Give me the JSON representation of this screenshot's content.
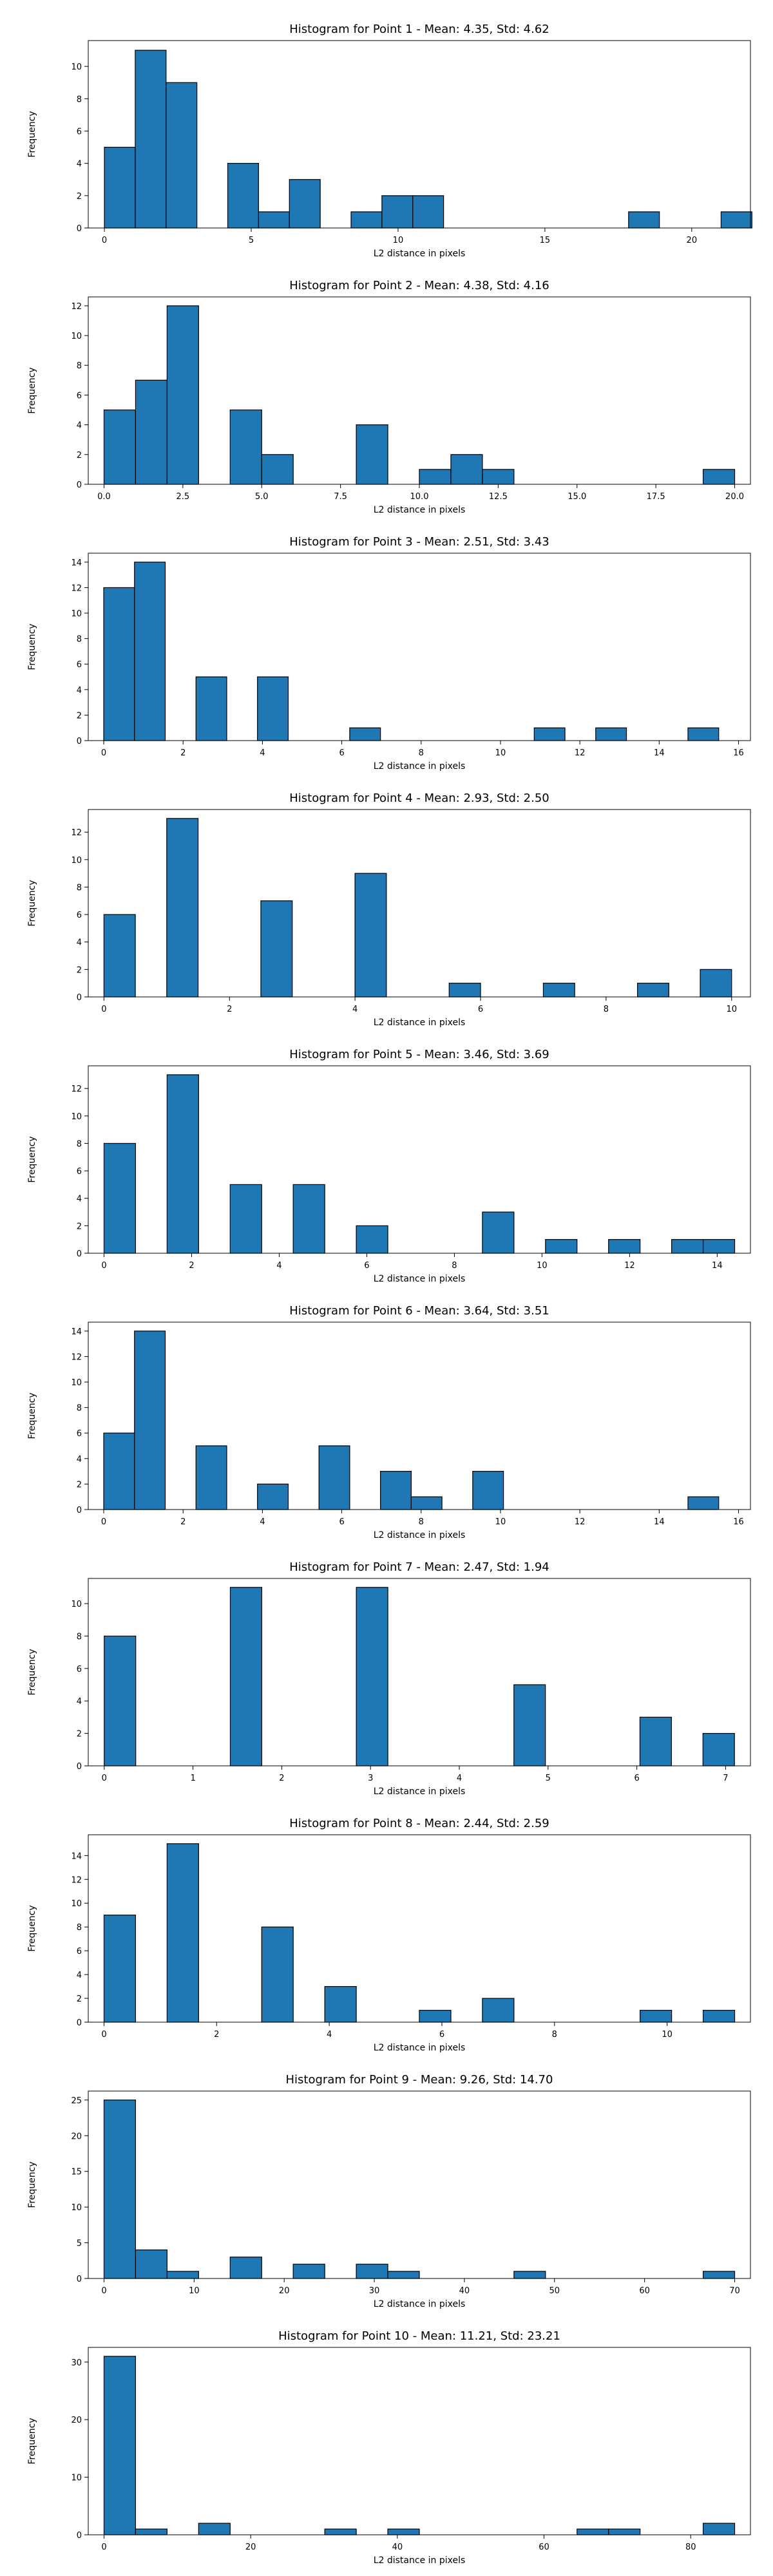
{
  "chart_data": [
    {
      "type": "bar",
      "title": "Histogram for Point 1 - Mean: 4.35, Std: 4.62",
      "xlabel": "L2 distance in pixels",
      "ylabel": "Frequency",
      "bin_start": 0.0,
      "bin_width": 1.05,
      "counts": [
        5,
        11,
        9,
        0,
        4,
        1,
        3,
        0,
        1,
        2,
        2,
        0,
        0,
        0,
        0,
        0,
        0,
        1,
        0,
        0,
        1
      ],
      "xlim": [
        -0.55,
        22.0
      ],
      "ylim": [
        0,
        11.6
      ],
      "xticks": [
        0,
        5,
        10,
        15,
        20
      ],
      "xtick_labels": [
        "0",
        "5",
        "10",
        "15",
        "20"
      ],
      "yticks": [
        0,
        2,
        4,
        6,
        8,
        10
      ],
      "ytick_labels": [
        "0",
        "2",
        "4",
        "6",
        "8",
        "10"
      ]
    },
    {
      "type": "bar",
      "title": "Histogram for Point 2 - Mean: 4.38, Std: 4.16",
      "xlabel": "L2 distance in pixels",
      "ylabel": "Frequency",
      "bin_start": 0.0,
      "bin_width": 1.0,
      "counts": [
        5,
        7,
        12,
        0,
        5,
        2,
        0,
        0,
        4,
        0,
        1,
        2,
        1,
        0,
        0,
        0,
        0,
        0,
        0,
        1
      ],
      "xlim": [
        -0.5,
        20.5
      ],
      "ylim": [
        0,
        12.6
      ],
      "xticks": [
        0,
        2.5,
        5,
        7.5,
        10,
        12.5,
        15,
        17.5,
        20
      ],
      "xtick_labels": [
        "0.0",
        "2.5",
        "5.0",
        "7.5",
        "10.0",
        "12.5",
        "15.0",
        "17.5",
        "20.0"
      ],
      "yticks": [
        0,
        2,
        4,
        6,
        8,
        10,
        12
      ],
      "ytick_labels": [
        "0",
        "2",
        "4",
        "6",
        "8",
        "10",
        "12"
      ]
    },
    {
      "type": "bar",
      "title": "Histogram for Point 3 - Mean: 2.51, Std: 3.43",
      "xlabel": "L2 distance in pixels",
      "ylabel": "Frequency",
      "bin_start": 0.0,
      "bin_width": 0.775,
      "counts": [
        12,
        14,
        0,
        5,
        0,
        5,
        0,
        0,
        1,
        0,
        0,
        0,
        0,
        0,
        1,
        0,
        1,
        0,
        0,
        1
      ],
      "xlim": [
        -0.39,
        16.3
      ],
      "ylim": [
        0,
        14.7
      ],
      "xticks": [
        0,
        2,
        4,
        6,
        8,
        10,
        12,
        14,
        16
      ],
      "xtick_labels": [
        "0",
        "2",
        "4",
        "6",
        "8",
        "10",
        "12",
        "14",
        "16"
      ],
      "yticks": [
        0,
        2,
        4,
        6,
        8,
        10,
        12,
        14
      ],
      "ytick_labels": [
        "0",
        "2",
        "4",
        "6",
        "8",
        "10",
        "12",
        "14"
      ]
    },
    {
      "type": "bar",
      "title": "Histogram for Point 4 - Mean: 2.93, Std: 2.50",
      "xlabel": "L2 distance in pixels",
      "ylabel": "Frequency",
      "bin_start": 0.0,
      "bin_width": 0.5,
      "counts": [
        6,
        0,
        13,
        0,
        0,
        7,
        0,
        0,
        9,
        0,
        0,
        1,
        0,
        0,
        1,
        0,
        0,
        1,
        0,
        2
      ],
      "xlim": [
        -0.25,
        10.3
      ],
      "ylim": [
        0,
        13.65
      ],
      "xticks": [
        0,
        2,
        4,
        6,
        8,
        10
      ],
      "xtick_labels": [
        "0",
        "2",
        "4",
        "6",
        "8",
        "10"
      ],
      "yticks": [
        0,
        2,
        4,
        6,
        8,
        10,
        12
      ],
      "ytick_labels": [
        "0",
        "2",
        "4",
        "6",
        "8",
        "10",
        "12"
      ]
    },
    {
      "type": "bar",
      "title": "Histogram for Point 5 - Mean: 3.46, Std: 3.69",
      "xlabel": "L2 distance in pixels",
      "ylabel": "Frequency",
      "bin_start": 0.0,
      "bin_width": 0.72,
      "counts": [
        8,
        0,
        13,
        0,
        5,
        0,
        5,
        0,
        2,
        0,
        0,
        0,
        3,
        0,
        1,
        0,
        1,
        0,
        1,
        1
      ],
      "xlim": [
        -0.36,
        14.76
      ],
      "ylim": [
        0,
        13.65
      ],
      "xticks": [
        0,
        2,
        4,
        6,
        8,
        10,
        12,
        14
      ],
      "xtick_labels": [
        "0",
        "2",
        "4",
        "6",
        "8",
        "10",
        "12",
        "14"
      ],
      "yticks": [
        0,
        2,
        4,
        6,
        8,
        10,
        12
      ],
      "ytick_labels": [
        "0",
        "2",
        "4",
        "6",
        "8",
        "10",
        "12"
      ]
    },
    {
      "type": "bar",
      "title": "Histogram for Point 6 - Mean: 3.64, Std: 3.51",
      "xlabel": "L2 distance in pixels",
      "ylabel": "Frequency",
      "bin_start": 0.0,
      "bin_width": 0.775,
      "counts": [
        6,
        14,
        0,
        5,
        0,
        2,
        0,
        5,
        0,
        3,
        1,
        0,
        3,
        0,
        0,
        0,
        0,
        0,
        0,
        1
      ],
      "xlim": [
        -0.39,
        16.3
      ],
      "ylim": [
        0,
        14.7
      ],
      "xticks": [
        0,
        2,
        4,
        6,
        8,
        10,
        12,
        14,
        16
      ],
      "xtick_labels": [
        "0",
        "2",
        "4",
        "6",
        "8",
        "10",
        "12",
        "14",
        "16"
      ],
      "yticks": [
        0,
        2,
        4,
        6,
        8,
        10,
        12,
        14
      ],
      "ytick_labels": [
        "0",
        "2",
        "4",
        "6",
        "8",
        "10",
        "12",
        "14"
      ]
    },
    {
      "type": "bar",
      "title": "Histogram for Point 7 - Mean: 2.47, Std: 1.94",
      "xlabel": "L2 distance in pixels",
      "ylabel": "Frequency",
      "bin_start": 0.0,
      "bin_width": 0.355,
      "counts": [
        8,
        0,
        0,
        0,
        11,
        0,
        0,
        0,
        11,
        0,
        0,
        0,
        0,
        5,
        0,
        0,
        0,
        3,
        0,
        2
      ],
      "xlim": [
        -0.18,
        7.28
      ],
      "ylim": [
        0,
        11.55
      ],
      "xticks": [
        0,
        1,
        2,
        3,
        4,
        5,
        6,
        7
      ],
      "xtick_labels": [
        "0",
        "1",
        "2",
        "3",
        "4",
        "5",
        "6",
        "7"
      ],
      "yticks": [
        0,
        2,
        4,
        6,
        8,
        10
      ],
      "ytick_labels": [
        "0",
        "2",
        "4",
        "6",
        "8",
        "10"
      ]
    },
    {
      "type": "bar",
      "title": "Histogram for Point 8 - Mean: 2.44, Std: 2.59",
      "xlabel": "L2 distance in pixels",
      "ylabel": "Frequency",
      "bin_start": 0.0,
      "bin_width": 0.56,
      "counts": [
        9,
        0,
        15,
        0,
        0,
        8,
        0,
        3,
        0,
        0,
        1,
        0,
        2,
        0,
        0,
        0,
        0,
        1,
        0,
        1
      ],
      "xlim": [
        -0.28,
        11.48
      ],
      "ylim": [
        0,
        15.75
      ],
      "xticks": [
        0,
        2,
        4,
        6,
        8,
        10
      ],
      "xtick_labels": [
        "0",
        "2",
        "4",
        "6",
        "8",
        "10"
      ],
      "yticks": [
        0,
        2,
        4,
        6,
        8,
        10,
        12,
        14
      ],
      "ytick_labels": [
        "0",
        "2",
        "4",
        "6",
        "8",
        "10",
        "12",
        "14"
      ]
    },
    {
      "type": "bar",
      "title": "Histogram for Point 9 - Mean: 9.26, Std: 14.70",
      "xlabel": "L2 distance in pixels",
      "ylabel": "Frequency",
      "bin_start": 0.0,
      "bin_width": 3.5,
      "counts": [
        25,
        4,
        1,
        0,
        3,
        0,
        2,
        0,
        2,
        1,
        0,
        0,
        0,
        1,
        0,
        0,
        0,
        0,
        0,
        1
      ],
      "xlim": [
        -1.75,
        71.75
      ],
      "ylim": [
        0,
        26.25
      ],
      "xticks": [
        0,
        10,
        20,
        30,
        40,
        50,
        60,
        70
      ],
      "xtick_labels": [
        "0",
        "10",
        "20",
        "30",
        "40",
        "50",
        "60",
        "70"
      ],
      "yticks": [
        0,
        5,
        10,
        15,
        20,
        25
      ],
      "ytick_labels": [
        "0",
        "5",
        "10",
        "15",
        "20",
        "25"
      ]
    },
    {
      "type": "bar",
      "title": "Histogram for Point 10 - Mean: 11.21, Std: 23.21",
      "xlabel": "L2 distance in pixels",
      "ylabel": "Frequency",
      "bin_start": 0.0,
      "bin_width": 4.3,
      "counts": [
        31,
        1,
        0,
        2,
        0,
        0,
        0,
        1,
        0,
        1,
        0,
        0,
        0,
        0,
        0,
        1,
        1,
        0,
        0,
        2
      ],
      "xlim": [
        -2.15,
        88.15
      ],
      "ylim": [
        0,
        32.55
      ],
      "xticks": [
        0,
        20,
        40,
        60,
        80
      ],
      "xtick_labels": [
        "0",
        "20",
        "40",
        "60",
        "80"
      ],
      "yticks": [
        0,
        10,
        20,
        30
      ],
      "ytick_labels": [
        "0",
        "10",
        "20",
        "30"
      ]
    }
  ],
  "style": {
    "bar_fill": "#1f77b4",
    "bar_edge": "#000000",
    "axis_color": "#000000",
    "background": "#ffffff"
  }
}
